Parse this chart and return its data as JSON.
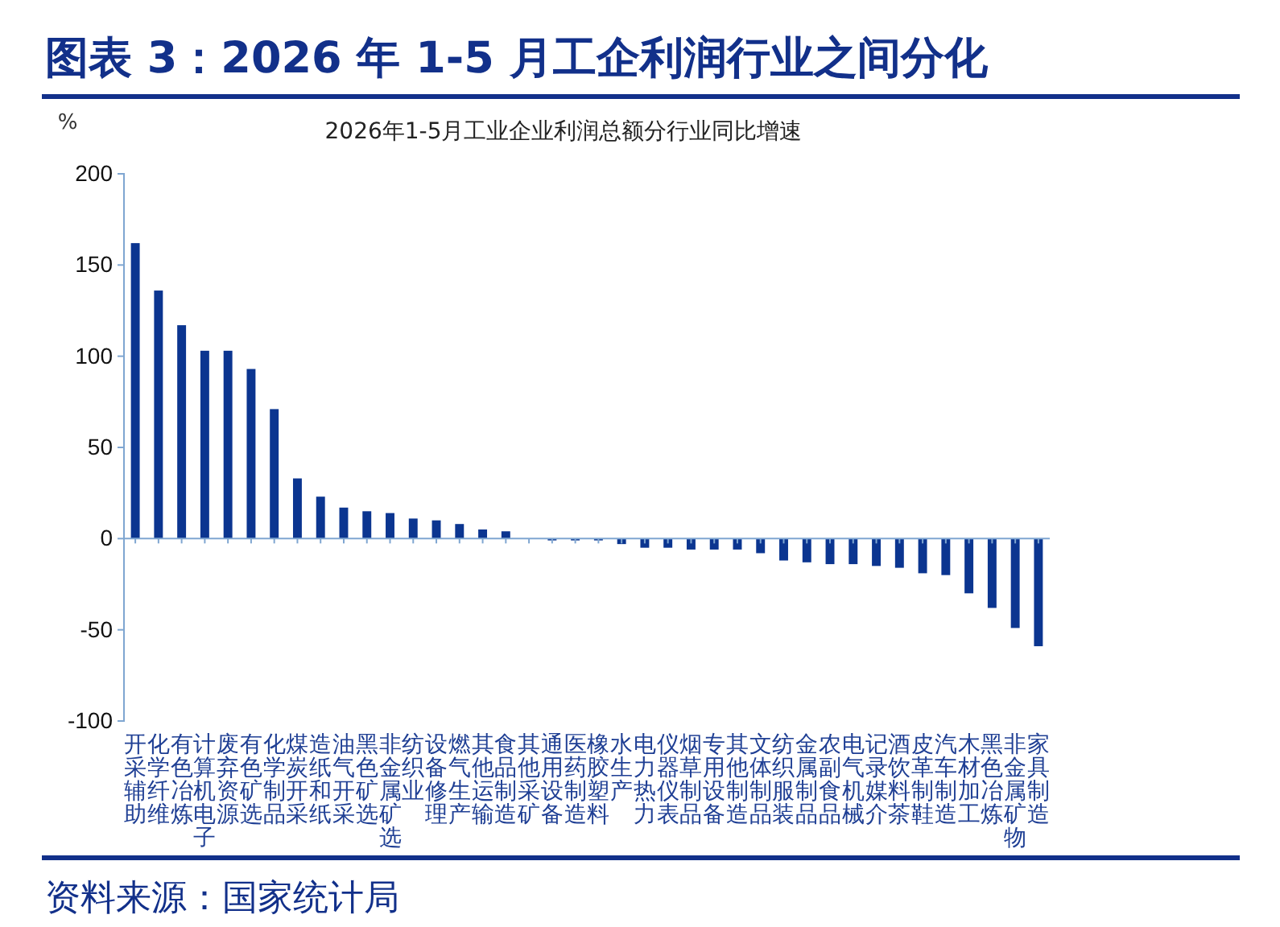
{
  "chart_data": {
    "type": "bar",
    "title": "2026年1-5月工业企业利润总额分行业同比增速",
    "ylabel": "%",
    "annotations": [
      "图表 3：2026 年 1-5 月工企利润行业之间分化",
      "资料来源：国家统计局"
    ],
    "categories": [
      "开采辅助",
      "化学纤维",
      "有色冶炼",
      "计算机电子",
      "废弃资源",
      "有色矿选",
      "化学制品",
      "煤炭开采",
      "造纸和纸",
      "油气开采",
      "黑色矿选",
      "非金属矿选",
      "纺织业",
      "设备修理",
      "燃气生产",
      "其他运输",
      "食品制造",
      "其他采矿",
      "通用设备",
      "医药制造",
      "橡胶塑料",
      "水生产",
      "电力热力",
      "仪器仪表",
      "烟草制品",
      "专用设备",
      "其他制造",
      "文体制品",
      "纺织服装",
      "金属制品",
      "农副食品",
      "电气机械",
      "记录媒介",
      "酒饮料茶",
      "皮革制鞋",
      "汽车制造",
      "木材加工",
      "黑色冶炼",
      "非金属矿物",
      "家具制造"
    ],
    "values": [
      162,
      136,
      117,
      103,
      103,
      93,
      71,
      33,
      23,
      17,
      15,
      14,
      11,
      10,
      8,
      5,
      4,
      0,
      -1,
      -1,
      -1,
      -3,
      -5,
      -5,
      -6,
      -6,
      -6,
      -8,
      -12,
      -13,
      -14,
      -14,
      -15,
      -16,
      -19,
      -20,
      -30,
      -38,
      -49,
      -59
    ],
    "color": "#0b3590",
    "ref_lines": [
      {
        "axis": "y",
        "value": 0,
        "color": "#7fa6d1"
      }
    ],
    "ylim": [
      -100,
      200
    ],
    "yticks": [
      -100,
      -50,
      0,
      50,
      100,
      150,
      200
    ]
  }
}
